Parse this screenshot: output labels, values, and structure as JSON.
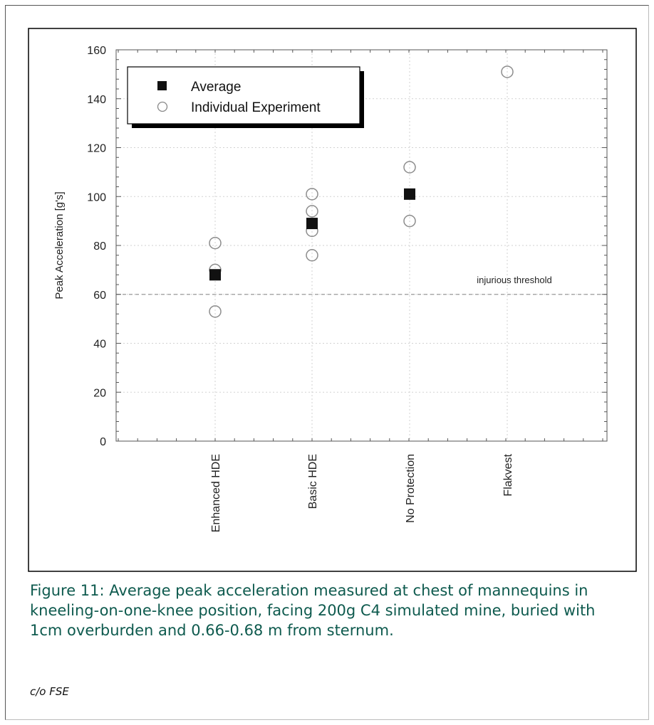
{
  "chart_data": {
    "type": "scatter",
    "categories": [
      "Enhanced HDE",
      "Basic HDE",
      "No Protection",
      "Flakvest"
    ],
    "ylabel": "Peak Acceleration [g's]",
    "ylim": [
      0,
      160
    ],
    "yticks": [
      0,
      20,
      40,
      60,
      80,
      100,
      120,
      140,
      160
    ],
    "grid": true,
    "legend_position": "top-left",
    "series": [
      {
        "name": "Average",
        "marker": "filled-square",
        "values": [
          68,
          89,
          101,
          null
        ]
      },
      {
        "name": "Individual Experiment",
        "marker": "open-circle",
        "points": [
          [
            0,
            81
          ],
          [
            0,
            70
          ],
          [
            0,
            53
          ],
          [
            1,
            101
          ],
          [
            1,
            94
          ],
          [
            1,
            86
          ],
          [
            1,
            76
          ],
          [
            2,
            112
          ],
          [
            2,
            90
          ],
          [
            3,
            151
          ]
        ]
      }
    ],
    "reference_lines": [
      {
        "y": 60,
        "label": "injurious threshold",
        "style": "dashed"
      }
    ]
  },
  "caption": "Figure 11:  Average peak acceleration measured at chest of mannequins in kneeling-on-one-knee position, facing 200g C4 simulated mine, buried with 1cm overburden and 0.66-0.68 m from sternum.",
  "credit": "c/o FSE"
}
